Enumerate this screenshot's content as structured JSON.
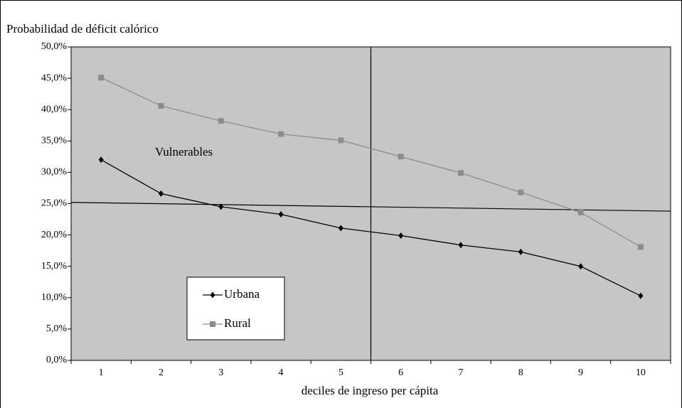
{
  "chart_data": {
    "type": "line",
    "y_axis_title": "Probabilidad de déficit calórico",
    "x_axis_title": "deciles de ingreso per cápita",
    "annotation": "Vulnerables",
    "categories": [
      1,
      2,
      3,
      4,
      5,
      6,
      7,
      8,
      9,
      10
    ],
    "series": [
      {
        "name": "Urbana",
        "color": "#000000",
        "marker": "diamond",
        "values": [
          32.0,
          26.6,
          24.5,
          23.3,
          21.1,
          19.9,
          18.4,
          17.3,
          15.0,
          10.3
        ]
      },
      {
        "name": "Rural",
        "color": "#8c8c8c",
        "marker": "square",
        "values": [
          45.1,
          40.6,
          38.2,
          36.1,
          35.1,
          32.5,
          29.9,
          26.8,
          23.6,
          18.1
        ]
      }
    ],
    "threshold_line": [
      25.2,
      23.8
    ],
    "divider_x": 5.5,
    "ylim": [
      0,
      50
    ],
    "yticks": [
      {
        "value": 0,
        "label": "0,0%"
      },
      {
        "value": 5,
        "label": "5,0%"
      },
      {
        "value": 10,
        "label": "10,0%"
      },
      {
        "value": 15,
        "label": "15,0%"
      },
      {
        "value": 20,
        "label": "20,0%"
      },
      {
        "value": 25,
        "label": "25,0%"
      },
      {
        "value": 30,
        "label": "30,0%"
      },
      {
        "value": 35,
        "label": "35,0%"
      },
      {
        "value": 40,
        "label": "40,0%"
      },
      {
        "value": 45,
        "label": "45,0%"
      },
      {
        "value": 50,
        "label": "50,0%"
      }
    ],
    "plot_background": "#c6c6c6",
    "legend": "lower-left"
  }
}
